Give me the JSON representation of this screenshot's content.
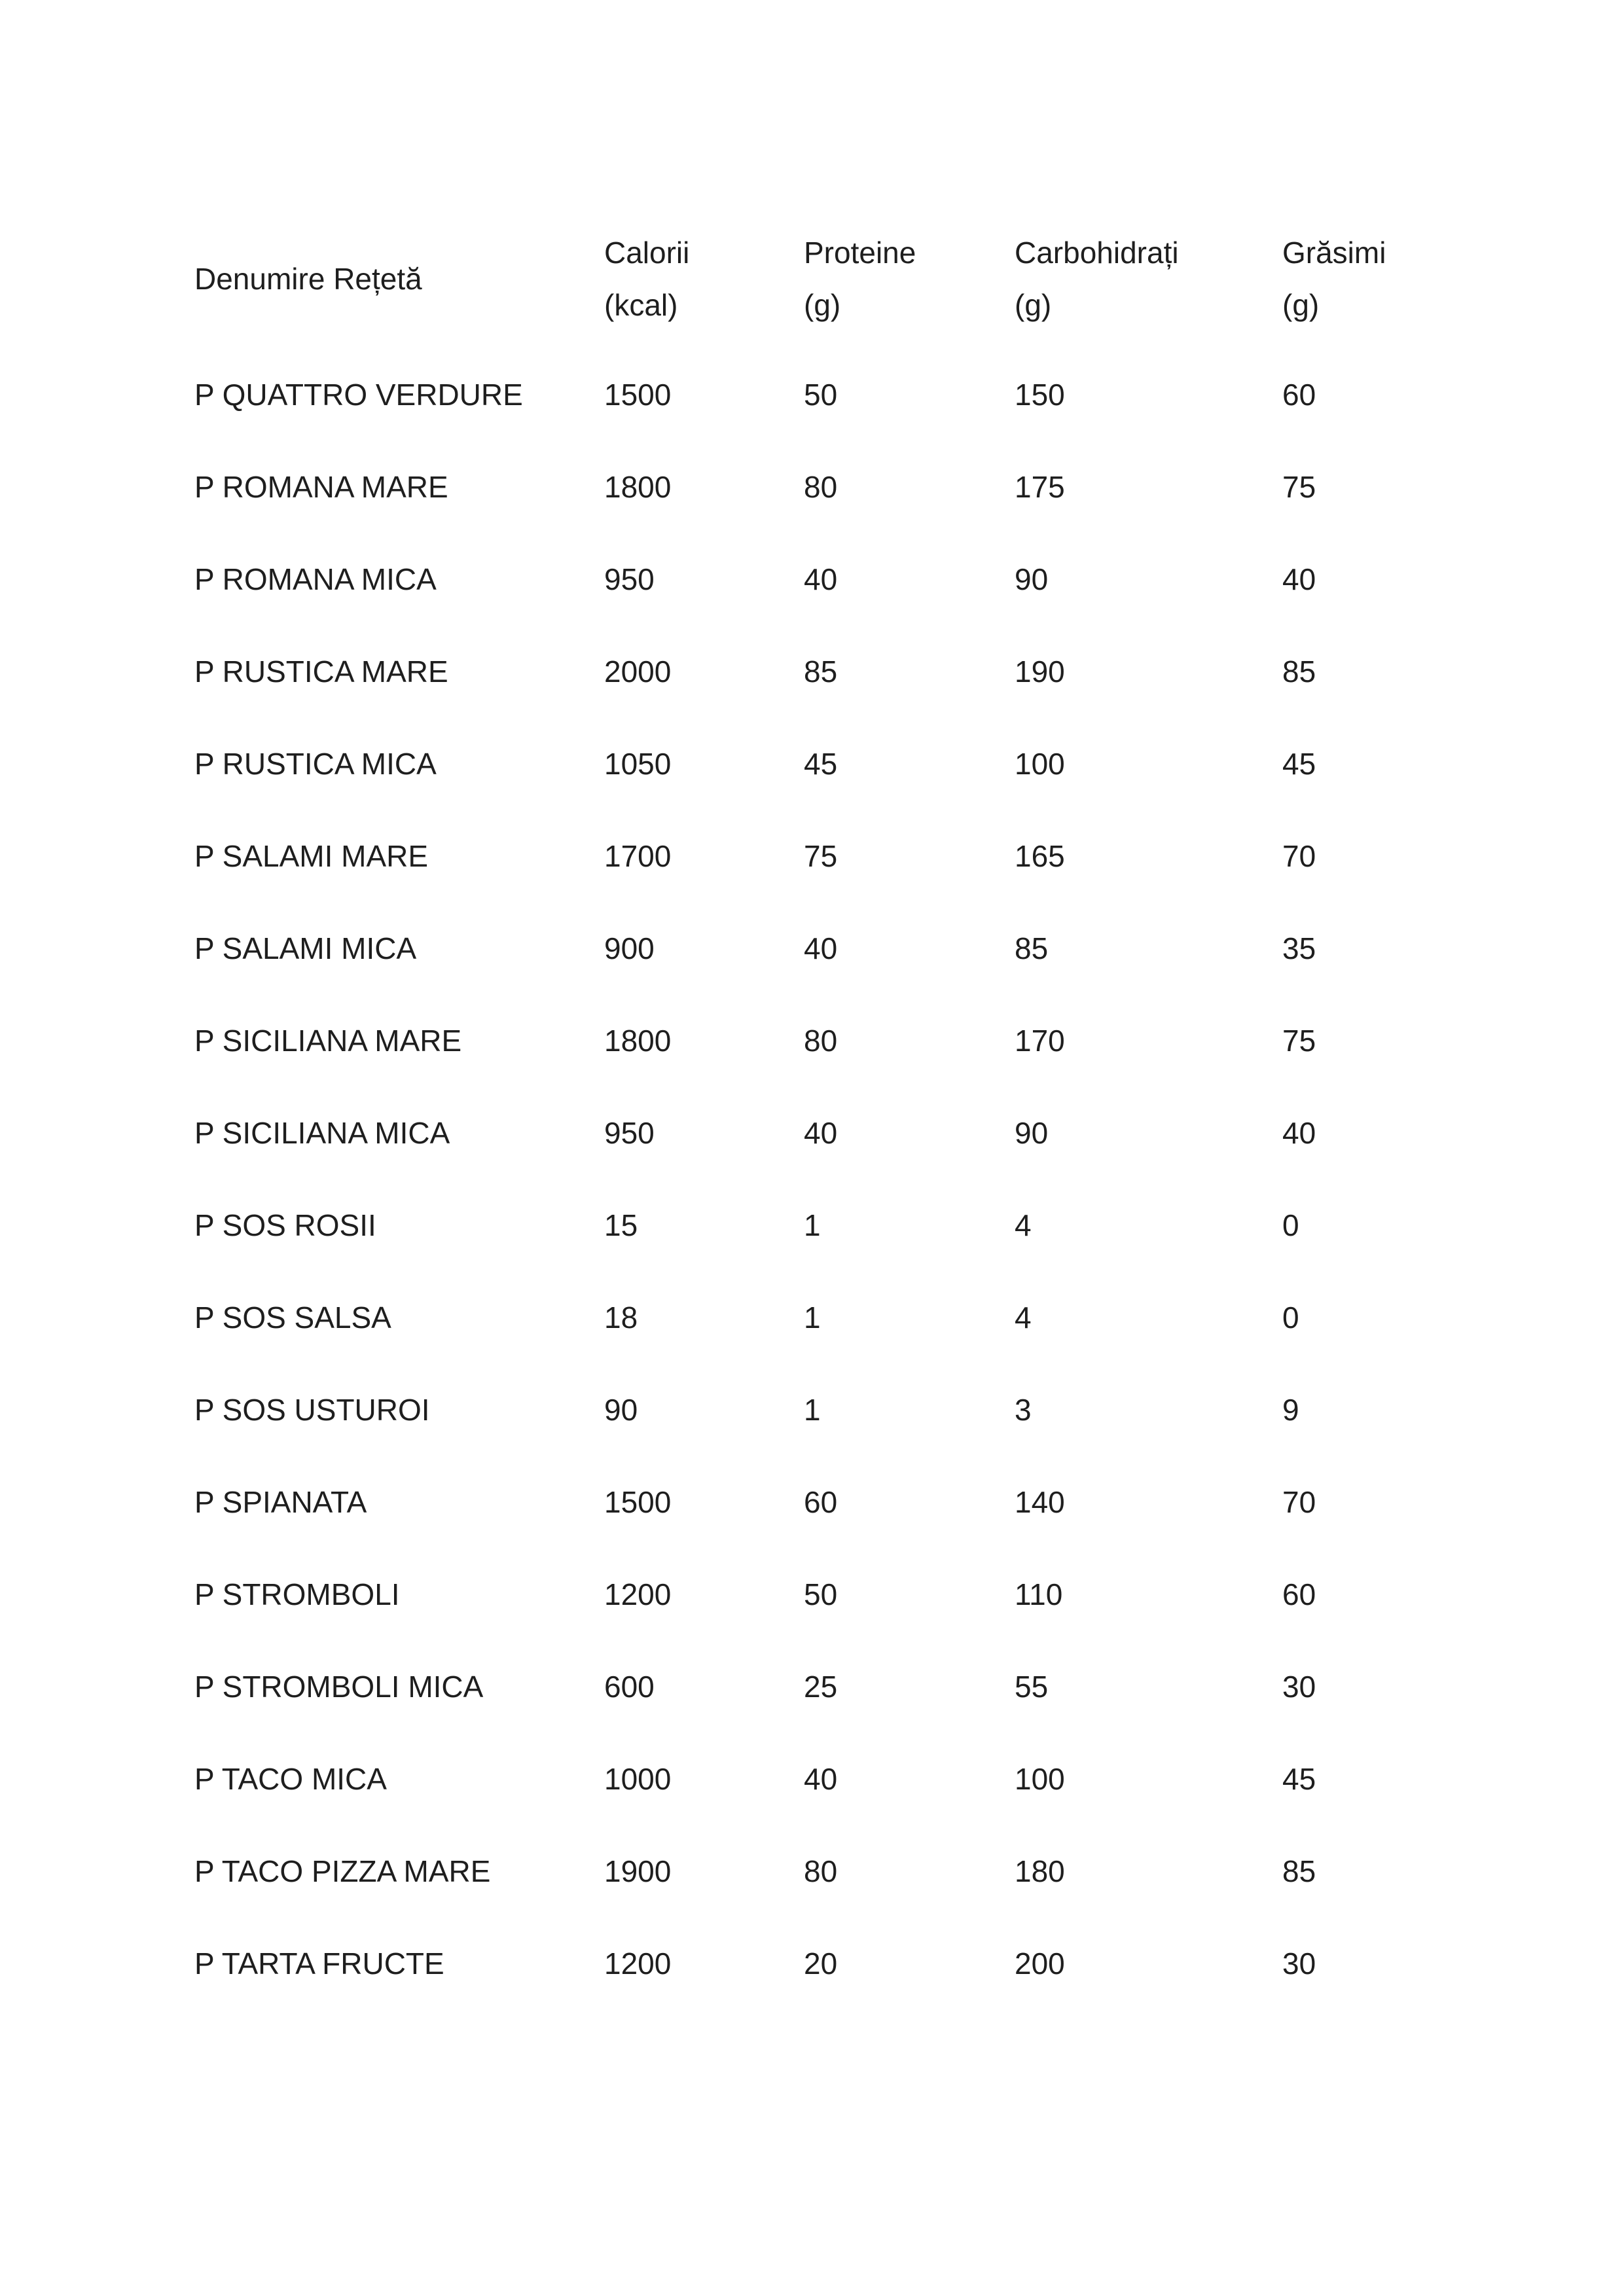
{
  "page": {
    "background_color": "#ffffff",
    "text_color": "#1e1e1e"
  },
  "table": {
    "columns": [
      {
        "line1": "Denumire Rețetă",
        "line2": ""
      },
      {
        "line1": "Calorii",
        "line2": "(kcal)"
      },
      {
        "line1": "Proteine",
        "line2": "(g)"
      },
      {
        "line1": "Carbohidrați",
        "line2": "(g)"
      },
      {
        "line1": "Grăsimi",
        "line2": "(g)"
      }
    ],
    "rows": [
      [
        "P QUATTRO VERDURE",
        "1500",
        "50",
        "150",
        "60"
      ],
      [
        "P ROMANA MARE",
        "1800",
        "80",
        "175",
        "75"
      ],
      [
        "P ROMANA MICA",
        "950",
        "40",
        "90",
        "40"
      ],
      [
        "P RUSTICA MARE",
        "2000",
        "85",
        "190",
        "85"
      ],
      [
        "P RUSTICA MICA",
        "1050",
        "45",
        "100",
        "45"
      ],
      [
        "P SALAMI MARE",
        "1700",
        "75",
        "165",
        "70"
      ],
      [
        "P SALAMI MICA",
        "900",
        "40",
        "85",
        "35"
      ],
      [
        "P SICILIANA MARE",
        "1800",
        "80",
        "170",
        "75"
      ],
      [
        "P SICILIANA MICA",
        "950",
        "40",
        "90",
        "40"
      ],
      [
        "P SOS ROSII",
        "15",
        "1",
        "4",
        "0"
      ],
      [
        "P SOS SALSA",
        "18",
        "1",
        "4",
        "0"
      ],
      [
        "P SOS USTUROI",
        "90",
        "1",
        "3",
        "9"
      ],
      [
        "P SPIANATA",
        "1500",
        "60",
        "140",
        "70"
      ],
      [
        "P STROMBOLI",
        "1200",
        "50",
        "110",
        "60"
      ],
      [
        "P STROMBOLI MICA",
        "600",
        "25",
        "55",
        "30"
      ],
      [
        "P TACO MICA",
        "1000",
        "40",
        "100",
        "45"
      ],
      [
        "P TACO PIZZA MARE",
        "1900",
        "80",
        "180",
        "85"
      ],
      [
        "P TARTA FRUCTE",
        "1200",
        "20",
        "200",
        "30"
      ]
    ]
  }
}
